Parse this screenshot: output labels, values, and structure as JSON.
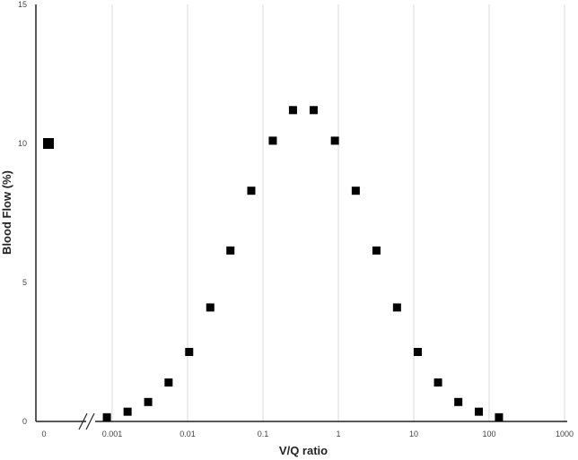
{
  "chart_data": {
    "type": "scatter",
    "xlabel": "V/Q ratio",
    "ylabel": "Blood Flow (%)",
    "x_scale": "log",
    "x_ticks": [
      "0",
      "0.001",
      "0.01",
      "0.1",
      "1",
      "10",
      "100",
      "1000"
    ],
    "y_ticks": [
      "0",
      "5",
      "10",
      "15"
    ],
    "ylim": [
      0,
      15
    ],
    "xlim": [
      0.001,
      1000
    ],
    "grid": "vertical",
    "axis_break": true,
    "zero_point": {
      "x": 0,
      "y": 10
    },
    "series": [
      {
        "marker": "square",
        "color": "#000000",
        "points": [
          {
            "x": 0.00085,
            "y": 0.15
          },
          {
            "x": 0.0016,
            "y": 0.35
          },
          {
            "x": 0.003,
            "y": 0.7
          },
          {
            "x": 0.0056,
            "y": 1.4
          },
          {
            "x": 0.0105,
            "y": 2.5
          },
          {
            "x": 0.02,
            "y": 4.1
          },
          {
            "x": 0.037,
            "y": 6.15
          },
          {
            "x": 0.07,
            "y": 8.3
          },
          {
            "x": 0.135,
            "y": 10.1
          },
          {
            "x": 0.25,
            "y": 11.2
          },
          {
            "x": 0.47,
            "y": 11.2
          },
          {
            "x": 0.9,
            "y": 10.1
          },
          {
            "x": 1.7,
            "y": 8.3
          },
          {
            "x": 3.2,
            "y": 6.15
          },
          {
            "x": 6.0,
            "y": 4.1
          },
          {
            "x": 11.3,
            "y": 2.5
          },
          {
            "x": 21,
            "y": 1.4
          },
          {
            "x": 39,
            "y": 0.7
          },
          {
            "x": 73,
            "y": 0.35
          },
          {
            "x": 135,
            "y": 0.15
          }
        ]
      }
    ]
  }
}
